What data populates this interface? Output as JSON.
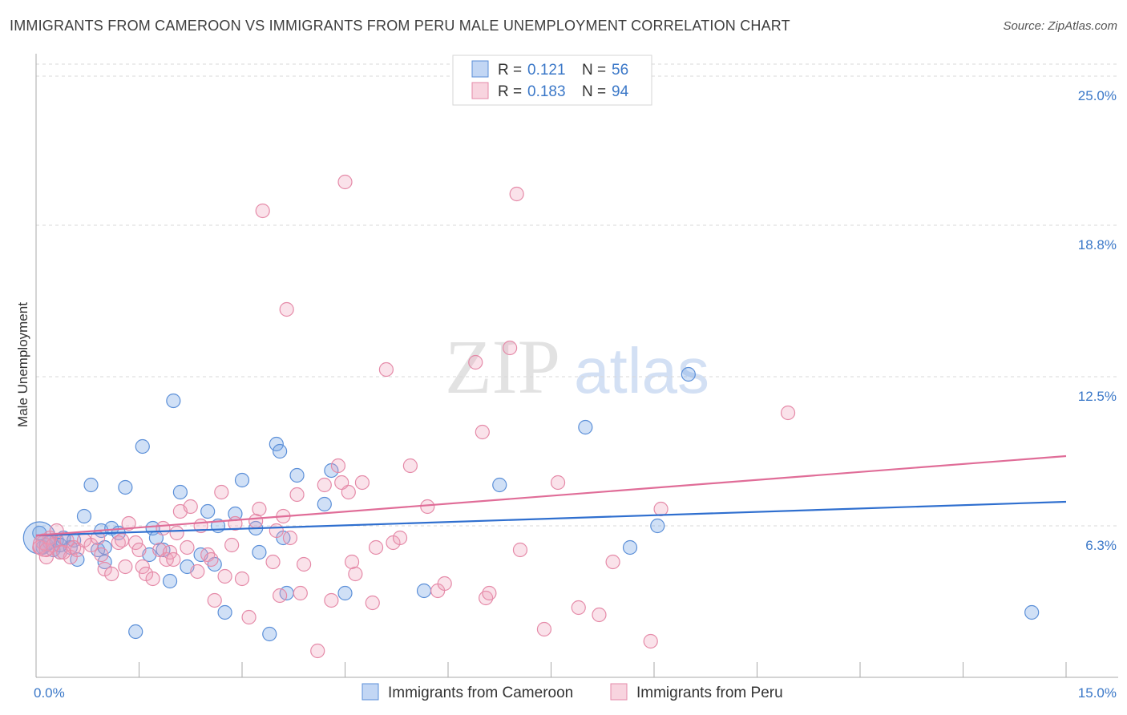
{
  "title": "IMMIGRANTS FROM CAMEROON VS IMMIGRANTS FROM PERU MALE UNEMPLOYMENT CORRELATION CHART",
  "source": "Source: ZipAtlas.com",
  "watermark": {
    "zip": "ZIP",
    "atlas": "atlas"
  },
  "colors": {
    "blue": "#5b8fd8",
    "blue_fill": "rgba(120,165,230,0.35)",
    "blue_line": "#2f6fcf",
    "pink": "#e58aa8",
    "pink_fill": "rgba(240,160,185,0.30)",
    "pink_line": "#e06d98",
    "tick_text": "#3b78c8",
    "grid": "#d8d8d8"
  },
  "legend": {
    "rows": [
      {
        "r_label": "R = ",
        "r_value": "0.121",
        "n_label": "N = ",
        "n_value": "56"
      },
      {
        "r_label": "R = ",
        "r_value": "0.183",
        "n_label": "N = ",
        "n_value": "94"
      }
    ]
  },
  "bottom_legend": [
    "Immigrants from Cameroon",
    "Immigrants from Peru"
  ],
  "chart_data": {
    "type": "scatter",
    "title": "IMMIGRANTS FROM CAMEROON VS IMMIGRANTS FROM PERU MALE UNEMPLOYMENT CORRELATION CHART",
    "xlabel": "",
    "ylabel": "Male Unemployment",
    "xlim": [
      0,
      15
    ],
    "ylim": [
      0,
      25.5
    ],
    "y_ticks": [
      {
        "value": 6.3,
        "label": "6.3%"
      },
      {
        "value": 12.5,
        "label": "12.5%"
      },
      {
        "value": 18.8,
        "label": "18.8%"
      },
      {
        "value": 25.0,
        "label": "25.0%"
      }
    ],
    "x_tick_labels": [
      {
        "value": 0,
        "label": "0.0%"
      },
      {
        "value": 15,
        "label": "15.0%"
      }
    ],
    "x_minor_ticks": [
      1.5,
      3.0,
      4.5,
      6.0,
      7.5,
      9.0,
      10.5,
      12.0,
      13.5,
      15.0
    ],
    "series": [
      {
        "name": "Immigrants from Cameroon",
        "R": 0.121,
        "N": 56,
        "trend": {
          "x": [
            0,
            15
          ],
          "y": [
            5.9,
            7.3
          ]
        },
        "points": [
          [
            0.05,
            6.0
          ],
          [
            0.1,
            5.4
          ],
          [
            0.15,
            5.5
          ],
          [
            0.2,
            5.6
          ],
          [
            0.25,
            5.3
          ],
          [
            0.3,
            5.7
          ],
          [
            0.35,
            5.2
          ],
          [
            0.4,
            5.8
          ],
          [
            0.5,
            5.4
          ],
          [
            0.6,
            4.9
          ],
          [
            0.7,
            6.7
          ],
          [
            0.8,
            8.0
          ],
          [
            0.9,
            5.3
          ],
          [
            0.95,
            6.1
          ],
          [
            1.0,
            4.8
          ],
          [
            1.1,
            6.2
          ],
          [
            1.2,
            6.0
          ],
          [
            1.3,
            7.9
          ],
          [
            1.45,
            1.9
          ],
          [
            1.55,
            9.6
          ],
          [
            1.65,
            5.1
          ],
          [
            1.7,
            6.2
          ],
          [
            1.75,
            5.8
          ],
          [
            1.85,
            5.3
          ],
          [
            1.95,
            4.0
          ],
          [
            2.0,
            11.5
          ],
          [
            2.1,
            7.7
          ],
          [
            2.2,
            4.6
          ],
          [
            2.4,
            5.1
          ],
          [
            2.5,
            6.9
          ],
          [
            2.6,
            4.7
          ],
          [
            2.65,
            6.3
          ],
          [
            2.75,
            2.7
          ],
          [
            2.9,
            6.8
          ],
          [
            3.0,
            8.2
          ],
          [
            3.2,
            6.2
          ],
          [
            3.25,
            5.2
          ],
          [
            3.4,
            1.8
          ],
          [
            3.5,
            9.7
          ],
          [
            3.55,
            9.4
          ],
          [
            3.65,
            3.5
          ],
          [
            3.8,
            8.4
          ],
          [
            4.2,
            7.2
          ],
          [
            4.5,
            3.5
          ],
          [
            5.65,
            3.6
          ],
          [
            6.75,
            8.0
          ],
          [
            8.0,
            10.4
          ],
          [
            8.65,
            5.4
          ],
          [
            9.05,
            6.3
          ],
          [
            9.5,
            12.6
          ],
          [
            14.5,
            2.7
          ],
          [
            0.35,
            5.5
          ],
          [
            0.55,
            5.7
          ],
          [
            1.0,
            5.4
          ],
          [
            3.6,
            5.8
          ],
          [
            4.3,
            8.6
          ]
        ]
      },
      {
        "name": "Immigrants from Peru",
        "R": 0.183,
        "N": 94,
        "trend": {
          "x": [
            0,
            15
          ],
          "y": [
            5.9,
            9.2
          ]
        },
        "points": [
          [
            0.05,
            5.4
          ],
          [
            0.1,
            5.6
          ],
          [
            0.15,
            5.3
          ],
          [
            0.2,
            5.8
          ],
          [
            0.25,
            5.5
          ],
          [
            0.3,
            6.1
          ],
          [
            0.35,
            5.2
          ],
          [
            0.45,
            5.7
          ],
          [
            0.5,
            5.0
          ],
          [
            0.55,
            5.4
          ],
          [
            0.6,
            5.3
          ],
          [
            0.7,
            5.7
          ],
          [
            0.8,
            5.5
          ],
          [
            0.9,
            5.8
          ],
          [
            0.95,
            5.1
          ],
          [
            1.0,
            4.5
          ],
          [
            1.1,
            4.3
          ],
          [
            1.2,
            5.6
          ],
          [
            1.3,
            4.6
          ],
          [
            1.35,
            6.4
          ],
          [
            1.45,
            5.6
          ],
          [
            1.5,
            5.3
          ],
          [
            1.55,
            4.6
          ],
          [
            1.6,
            4.3
          ],
          [
            1.7,
            4.1
          ],
          [
            1.8,
            5.3
          ],
          [
            1.85,
            6.2
          ],
          [
            1.9,
            4.9
          ],
          [
            1.95,
            5.2
          ],
          [
            2.05,
            6.0
          ],
          [
            2.1,
            6.9
          ],
          [
            2.2,
            5.4
          ],
          [
            2.25,
            7.1
          ],
          [
            2.35,
            4.4
          ],
          [
            2.4,
            6.3
          ],
          [
            2.5,
            5.1
          ],
          [
            2.55,
            4.9
          ],
          [
            2.6,
            3.2
          ],
          [
            2.7,
            7.7
          ],
          [
            2.75,
            4.2
          ],
          [
            2.85,
            5.5
          ],
          [
            2.9,
            6.4
          ],
          [
            3.0,
            4.1
          ],
          [
            3.1,
            2.5
          ],
          [
            3.2,
            6.5
          ],
          [
            3.25,
            7.0
          ],
          [
            3.3,
            19.4
          ],
          [
            3.45,
            4.8
          ],
          [
            3.5,
            6.1
          ],
          [
            3.6,
            6.7
          ],
          [
            3.65,
            15.3
          ],
          [
            3.7,
            5.8
          ],
          [
            3.8,
            7.6
          ],
          [
            3.85,
            3.5
          ],
          [
            3.9,
            4.7
          ],
          [
            4.1,
            1.1
          ],
          [
            4.2,
            8.0
          ],
          [
            4.3,
            3.2
          ],
          [
            4.4,
            8.8
          ],
          [
            4.5,
            20.6
          ],
          [
            4.55,
            7.7
          ],
          [
            4.6,
            4.8
          ],
          [
            4.65,
            4.3
          ],
          [
            4.75,
            8.1
          ],
          [
            4.9,
            3.1
          ],
          [
            4.95,
            5.4
          ],
          [
            5.1,
            12.8
          ],
          [
            5.2,
            5.6
          ],
          [
            5.3,
            5.8
          ],
          [
            5.45,
            8.8
          ],
          [
            5.7,
            7.1
          ],
          [
            5.85,
            3.6
          ],
          [
            5.95,
            3.9
          ],
          [
            6.4,
            13.1
          ],
          [
            6.5,
            10.2
          ],
          [
            6.55,
            3.3
          ],
          [
            6.9,
            13.7
          ],
          [
            7.0,
            20.1
          ],
          [
            7.05,
            5.3
          ],
          [
            7.4,
            2.0
          ],
          [
            7.6,
            8.1
          ],
          [
            7.9,
            2.9
          ],
          [
            8.2,
            2.6
          ],
          [
            8.4,
            4.8
          ],
          [
            8.95,
            1.5
          ],
          [
            9.1,
            7.0
          ],
          [
            10.95,
            11.0
          ],
          [
            0.15,
            5.0
          ],
          [
            0.4,
            5.2
          ],
          [
            1.25,
            5.7
          ],
          [
            2.0,
            4.9
          ],
          [
            3.55,
            3.4
          ],
          [
            4.45,
            8.1
          ],
          [
            6.6,
            3.5
          ]
        ]
      }
    ]
  }
}
